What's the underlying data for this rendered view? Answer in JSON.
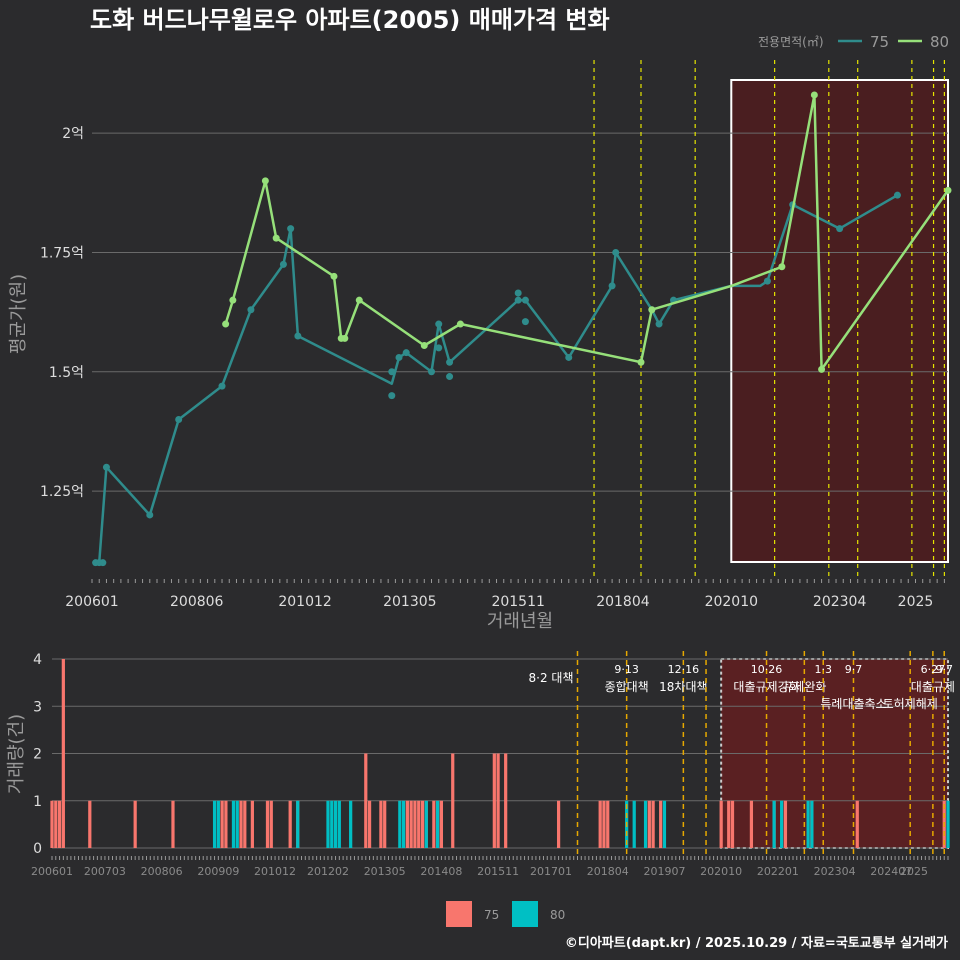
{
  "title": "도화 버드나무윌로우 아파트(2005) 매매가격 변화",
  "footer": "©디아파트(dapt.kr) / 2025.10.29 / 자료=국토교통부 실거래가",
  "colors": {
    "background": "#2b2b2d",
    "grid": "#6a6a6a",
    "series75": "#2f8c8c",
    "series80": "#96e07a",
    "bar75": "#f8766d",
    "bar80": "#00bfc4",
    "policy": "#e6e600",
    "policy_bottom": "#e6a800",
    "highlight_fill": "#4a1e20",
    "title": "#ffffff"
  },
  "legend_top": {
    "title": "전용면적(㎡)",
    "items": [
      "75",
      "80"
    ]
  },
  "legend_bottom": {
    "items": [
      "75",
      "80"
    ]
  },
  "chart_data": [
    {
      "type": "line",
      "title": "도화 버드나무윌로우 아파트(2005) 매매가격 변화",
      "xlabel": "거래년월",
      "ylabel": "평균가(원)",
      "x_range": [
        "2006-01",
        "2025-10"
      ],
      "ylim": [
        1.07,
        2.17
      ],
      "x_ticks": [
        "200601",
        "200806",
        "201012",
        "201305",
        "201511",
        "201804",
        "202010",
        "202304",
        "2025"
      ],
      "y_ticks": [
        1.25,
        1.5,
        1.75,
        2.0
      ],
      "y_tick_labels": [
        "1.25억",
        "1.5억",
        "1.75억",
        "2억"
      ],
      "highlight": {
        "from": "2020-10",
        "to": "2025-10"
      },
      "policy_dates": [
        "2017-08",
        "2018-09",
        "2019-12",
        "2021-10",
        "2023-01",
        "2023-09",
        "2024-12",
        "2025-06",
        "2025-09"
      ],
      "series": [
        {
          "name": "75",
          "line": [
            [
              "2006-02",
              1.1
            ],
            [
              "2006-03",
              1.1
            ],
            [
              "2006-05",
              1.3
            ],
            [
              "2007-05",
              1.2
            ],
            [
              "2008-01",
              1.4
            ],
            [
              "2009-01",
              1.47
            ],
            [
              "2009-09",
              1.63
            ],
            [
              "2010-06",
              1.725
            ],
            [
              "2010-08",
              1.8
            ],
            [
              "2010-10",
              1.575
            ],
            [
              "2012-12",
              1.475
            ],
            [
              "2013-02",
              1.53
            ],
            [
              "2013-04",
              1.54
            ],
            [
              "2013-11",
              1.5
            ],
            [
              "2014-01",
              1.6
            ],
            [
              "2014-04",
              1.52
            ],
            [
              "2015-11",
              1.65
            ],
            [
              "2016-01",
              1.65
            ],
            [
              "2017-01",
              1.53
            ],
            [
              "2018-01",
              1.68
            ],
            [
              "2018-02",
              1.75
            ],
            [
              "2018-12",
              1.63
            ],
            [
              "2019-02",
              1.6
            ],
            [
              "2019-06",
              1.65
            ],
            [
              "2020-10",
              1.68
            ],
            [
              "2021-06",
              1.68
            ],
            [
              "2021-08",
              1.69
            ],
            [
              "2022-03",
              1.85
            ],
            [
              "2023-04",
              1.8
            ],
            [
              "2024-08",
              1.87
            ]
          ],
          "points": [
            [
              "2006-02",
              1.1
            ],
            [
              "2006-03",
              1.1
            ],
            [
              "2006-04",
              1.1
            ],
            [
              "2006-05",
              1.3
            ],
            [
              "2007-05",
              1.2
            ],
            [
              "2008-01",
              1.4
            ],
            [
              "2009-01",
              1.47
            ],
            [
              "2009-09",
              1.63
            ],
            [
              "2010-06",
              1.725
            ],
            [
              "2010-08",
              1.8
            ],
            [
              "2010-10",
              1.575
            ],
            [
              "2012-12",
              1.45
            ],
            [
              "2012-12",
              1.5
            ],
            [
              "2013-02",
              1.53
            ],
            [
              "2013-04",
              1.54
            ],
            [
              "2013-11",
              1.5
            ],
            [
              "2014-01",
              1.6
            ],
            [
              "2014-01",
              1.55
            ],
            [
              "2014-04",
              1.52
            ],
            [
              "2014-04",
              1.49
            ],
            [
              "2015-11",
              1.665
            ],
            [
              "2015-11",
              1.65
            ],
            [
              "2016-01",
              1.65
            ],
            [
              "2016-01",
              1.605
            ],
            [
              "2017-01",
              1.53
            ],
            [
              "2018-01",
              1.68
            ],
            [
              "2018-02",
              1.75
            ],
            [
              "2018-12",
              1.63
            ],
            [
              "2019-02",
              1.6
            ],
            [
              "2019-06",
              1.65
            ],
            [
              "2021-08",
              1.69
            ],
            [
              "2022-03",
              1.85
            ],
            [
              "2023-04",
              1.8
            ],
            [
              "2024-08",
              1.87
            ]
          ]
        },
        {
          "name": "80",
          "line": [
            [
              "2009-02",
              1.6
            ],
            [
              "2009-04",
              1.65
            ],
            [
              "2010-01",
              1.9
            ],
            [
              "2010-04",
              1.78
            ],
            [
              "2011-08",
              1.7
            ],
            [
              "2011-10",
              1.57
            ],
            [
              "2011-11",
              1.57
            ],
            [
              "2012-03",
              1.65
            ],
            [
              "2013-09",
              1.555
            ],
            [
              "2014-07",
              1.6
            ],
            [
              "2018-09",
              1.52
            ],
            [
              "2018-12",
              1.63
            ],
            [
              "2020-10",
              1.68
            ],
            [
              "2021-12",
              1.72
            ],
            [
              "2022-09",
              2.08
            ],
            [
              "2022-11",
              1.505
            ],
            [
              "2025-10",
              1.88
            ]
          ],
          "points": [
            [
              "2009-02",
              1.6
            ],
            [
              "2009-04",
              1.65
            ],
            [
              "2010-01",
              1.9
            ],
            [
              "2010-04",
              1.78
            ],
            [
              "2011-08",
              1.7
            ],
            [
              "2011-10",
              1.57
            ],
            [
              "2011-11",
              1.57
            ],
            [
              "2012-03",
              1.65
            ],
            [
              "2013-09",
              1.555
            ],
            [
              "2014-07",
              1.6
            ],
            [
              "2018-09",
              1.52
            ],
            [
              "2018-12",
              1.63
            ],
            [
              "2021-12",
              1.72
            ],
            [
              "2022-09",
              2.08
            ],
            [
              "2022-11",
              1.505
            ],
            [
              "2025-10",
              1.88
            ]
          ]
        }
      ]
    },
    {
      "type": "bar",
      "title": "",
      "xlabel": "",
      "ylabel": "거래량(건)",
      "x_range": [
        "2006-01",
        "2025-10"
      ],
      "ylim": [
        0,
        4
      ],
      "y_ticks": [
        0,
        1,
        2,
        3,
        4
      ],
      "x_ticks": [
        "200601",
        "200703",
        "200806",
        "200909",
        "201012",
        "201202",
        "201305",
        "201408",
        "201511",
        "201701",
        "201804",
        "201907",
        "202010",
        "202201",
        "202304",
        "202407",
        "2025"
      ],
      "highlight": {
        "from": "2020-10",
        "to": "2025-10"
      },
      "policies": [
        {
          "date": "2017-08",
          "label1": "",
          "label2": "8·2 대책"
        },
        {
          "date": "2018-09",
          "label1": "9·13",
          "label2": "종합대책"
        },
        {
          "date": "2019-12",
          "label1": "12·16",
          "label2": "18차대책"
        },
        {
          "date": "2020-06",
          "label1": "",
          "label2": ""
        },
        {
          "date": "2021-10",
          "label1": "10·26",
          "label2": "대출규제강화"
        },
        {
          "date": "2022-08",
          "label1": "",
          "label2": "규제완화"
        },
        {
          "date": "2023-01",
          "label1": "1·3",
          "label2": ""
        },
        {
          "date": "2023-09",
          "label1": "9·7",
          "label2": "특례대출축소"
        },
        {
          "date": "2024-12",
          "label1": "",
          "label2": "토허제해제"
        },
        {
          "date": "2025-06",
          "label1": "6·27",
          "label2": "대출규제"
        },
        {
          "date": "2025-09",
          "label1": "9·7",
          "label2": ""
        }
      ],
      "series": [
        {
          "name": "75",
          "bars": [
            [
              "2006-01",
              1
            ],
            [
              "2006-02",
              1
            ],
            [
              "2006-03",
              1
            ],
            [
              "2006-04",
              4
            ],
            [
              "2006-11",
              1
            ],
            [
              "2007-11",
              1
            ],
            [
              "2008-09",
              1
            ],
            [
              "2009-10",
              1
            ],
            [
              "2009-11",
              1
            ],
            [
              "2010-03",
              1
            ],
            [
              "2010-04",
              1
            ],
            [
              "2010-06",
              1
            ],
            [
              "2010-10",
              1
            ],
            [
              "2010-11",
              1
            ],
            [
              "2011-04",
              1
            ],
            [
              "2011-06",
              1
            ],
            [
              "2012-12",
              2
            ],
            [
              "2013-01",
              1
            ],
            [
              "2013-04",
              1
            ],
            [
              "2013-05",
              1
            ],
            [
              "2013-11",
              1
            ],
            [
              "2013-12",
              1
            ],
            [
              "2014-01",
              1
            ],
            [
              "2014-02",
              1
            ],
            [
              "2014-03",
              1
            ],
            [
              "2014-04",
              1
            ],
            [
              "2014-06",
              1
            ],
            [
              "2014-07",
              1
            ],
            [
              "2014-08",
              1
            ],
            [
              "2014-11",
              2
            ],
            [
              "2015-10",
              2
            ],
            [
              "2015-11",
              2
            ],
            [
              "2016-01",
              2
            ],
            [
              "2017-03",
              1
            ],
            [
              "2018-02",
              1
            ],
            [
              "2018-03",
              1
            ],
            [
              "2018-04",
              1
            ],
            [
              "2019-03",
              1
            ],
            [
              "2019-04",
              1
            ],
            [
              "2019-06",
              1
            ],
            [
              "2020-10",
              1
            ],
            [
              "2020-12",
              1
            ],
            [
              "2021-01",
              1
            ],
            [
              "2021-06",
              1
            ],
            [
              "2021-12",
              1
            ],
            [
              "2022-03",
              1
            ],
            [
              "2022-10",
              1
            ],
            [
              "2023-10",
              1
            ],
            [
              "2025-09",
              1
            ]
          ]
        },
        {
          "name": "80",
          "bars": [
            [
              "2009-08",
              1
            ],
            [
              "2009-09",
              1
            ],
            [
              "2010-01",
              1
            ],
            [
              "2010-02",
              1
            ],
            [
              "2011-06",
              1
            ],
            [
              "2012-02",
              1
            ],
            [
              "2012-03",
              1
            ],
            [
              "2012-04",
              1
            ],
            [
              "2012-05",
              1
            ],
            [
              "2012-08",
              1
            ],
            [
              "2013-09",
              1
            ],
            [
              "2013-10",
              1
            ],
            [
              "2014-04",
              1
            ],
            [
              "2014-07",
              1
            ],
            [
              "2018-09",
              1
            ],
            [
              "2018-11",
              1
            ],
            [
              "2019-02",
              1
            ],
            [
              "2019-07",
              1
            ],
            [
              "2021-12",
              1
            ],
            [
              "2022-02",
              1
            ],
            [
              "2022-09",
              1
            ],
            [
              "2022-10",
              1
            ],
            [
              "2025-10",
              1
            ]
          ]
        }
      ]
    }
  ]
}
